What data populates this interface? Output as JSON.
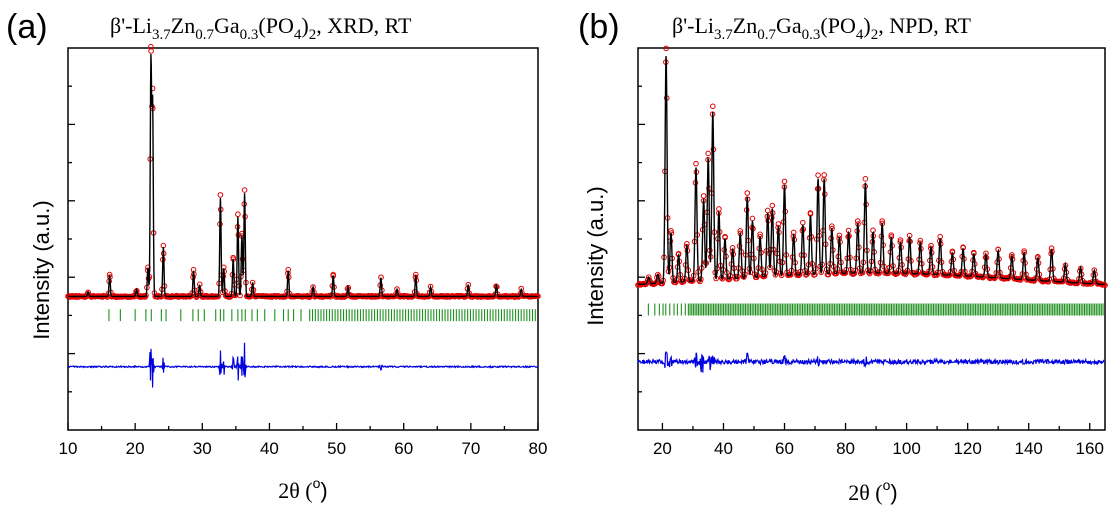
{
  "figure": {
    "panels": [
      {
        "letter": "(a)",
        "title": {
          "prefix": "β'-Li",
          "s1": "3.7",
          "m1": "Zn",
          "s2": "0.7",
          "m2": "Ga",
          "s3": "0.3",
          "m3": "(PO",
          "s4": "4",
          "m4": ")",
          "s5": "2",
          "suffix": ", XRD, RT"
        },
        "ylabel": "Intensity (a.u.)",
        "xlabel_theta": "2θ (",
        "xlabel_sup": "o",
        "xlabel_close": ")"
      },
      {
        "letter": "(b)",
        "title": {
          "prefix": "β'-Li",
          "s1": "3.7",
          "m1": "Zn",
          "s2": "0.7",
          "m2": "Ga",
          "s3": "0.3",
          "m3": "(PO",
          "s4": "4",
          "m4": ")",
          "s5": "2",
          "suffix": ", NPD, RT"
        },
        "ylabel": "Intensity (a.u.)",
        "xlabel_theta": "2θ (",
        "xlabel_sup": "o",
        "xlabel_close": ")"
      }
    ]
  },
  "chart_data": [
    {
      "type": "line",
      "technique": "XRD",
      "xlim": [
        10,
        80
      ],
      "xticks": [
        10,
        20,
        30,
        40,
        50,
        60,
        70,
        80
      ],
      "xtick_labels": [
        "10",
        "20",
        "30",
        "40",
        "50",
        "60",
        "70",
        "80"
      ],
      "ylim": [
        -0.55,
        1.08
      ],
      "yticks_labeled": false,
      "colors": {
        "observed": "#e00000",
        "calculated": "#000000",
        "bragg": "#1f8f1f",
        "difference": "#0000e0"
      },
      "baseline": 0.02,
      "peaks": [
        [
          13.0,
          0.02
        ],
        [
          16.2,
          0.09
        ],
        [
          20.2,
          0.03
        ],
        [
          21.9,
          0.12
        ],
        [
          22.35,
          1.0
        ],
        [
          22.6,
          0.82
        ],
        [
          24.2,
          0.21
        ],
        [
          28.7,
          0.11
        ],
        [
          29.6,
          0.05
        ],
        [
          32.7,
          0.42
        ],
        [
          33.2,
          0.12
        ],
        [
          34.6,
          0.16
        ],
        [
          35.3,
          0.34
        ],
        [
          35.9,
          0.26
        ],
        [
          36.3,
          0.44
        ],
        [
          37.5,
          0.06
        ],
        [
          42.8,
          0.11
        ],
        [
          46.5,
          0.04
        ],
        [
          49.5,
          0.09
        ],
        [
          51.7,
          0.04
        ],
        [
          56.6,
          0.08
        ],
        [
          59.0,
          0.03
        ],
        [
          61.8,
          0.09
        ],
        [
          64.0,
          0.04
        ],
        [
          69.6,
          0.05
        ],
        [
          73.8,
          0.05
        ],
        [
          77.5,
          0.03
        ]
      ],
      "peak_width": 0.14,
      "bragg_ticks": [
        16.1,
        17.8,
        20.0,
        21.6,
        22.4,
        23.9,
        24.6,
        26.8,
        28.6,
        29.4,
        30.3,
        32.0,
        32.7,
        33.2,
        34.4,
        35.3,
        35.9,
        36.4,
        37.4,
        38.2,
        39.3,
        40.8,
        42.1,
        42.8,
        43.6,
        44.7
      ],
      "bragg_dense_from": 46.0,
      "bragg_dense_step": 0.42,
      "bragg_level": -0.06,
      "difference_level": -0.28,
      "difference_spikes": [
        [
          22.3,
          0.1
        ],
        [
          22.6,
          -0.09
        ],
        [
          24.2,
          0.04
        ],
        [
          32.7,
          0.07
        ],
        [
          33.2,
          -0.04
        ],
        [
          34.6,
          0.04
        ],
        [
          35.3,
          -0.07
        ],
        [
          35.9,
          0.06
        ],
        [
          36.3,
          0.1
        ],
        [
          56.6,
          0.02
        ]
      ],
      "series": [
        {
          "name": "observed"
        },
        {
          "name": "calculated"
        },
        {
          "name": "bragg positions"
        },
        {
          "name": "difference"
        }
      ]
    },
    {
      "type": "line",
      "technique": "NPD",
      "xlim": [
        12,
        165
      ],
      "xticks": [
        20,
        40,
        60,
        80,
        100,
        120,
        140,
        160
      ],
      "xtick_labels": [
        "20",
        "40",
        "60",
        "80",
        "100",
        "120",
        "140",
        "160"
      ],
      "ylim": [
        -0.6,
        1.08
      ],
      "yticks_labeled": false,
      "colors": {
        "observed": "#e00000",
        "calculated": "#000000",
        "bragg": "#1f8f1f",
        "difference": "#0000e0"
      },
      "baseline": 0.02,
      "background_hump": 0.07,
      "peaks": [
        [
          15.5,
          0.03
        ],
        [
          18.5,
          0.04
        ],
        [
          21.2,
          1.0
        ],
        [
          22.8,
          0.22
        ],
        [
          25.3,
          0.12
        ],
        [
          28.0,
          0.16
        ],
        [
          31.0,
          0.5
        ],
        [
          33.5,
          0.36
        ],
        [
          35.0,
          0.54
        ],
        [
          36.5,
          0.74
        ],
        [
          38.5,
          0.3
        ],
        [
          40.5,
          0.18
        ],
        [
          43.0,
          0.13
        ],
        [
          45.5,
          0.2
        ],
        [
          47.8,
          0.36
        ],
        [
          49.5,
          0.25
        ],
        [
          52.0,
          0.18
        ],
        [
          54.5,
          0.28
        ],
        [
          56.0,
          0.3
        ],
        [
          58.0,
          0.22
        ],
        [
          60.0,
          0.4
        ],
        [
          63.0,
          0.18
        ],
        [
          66.0,
          0.22
        ],
        [
          68.5,
          0.26
        ],
        [
          71.0,
          0.42
        ],
        [
          73.0,
          0.42
        ],
        [
          75.5,
          0.2
        ],
        [
          78.0,
          0.16
        ],
        [
          81.0,
          0.18
        ],
        [
          84.0,
          0.22
        ],
        [
          86.5,
          0.4
        ],
        [
          89.0,
          0.18
        ],
        [
          92.0,
          0.22
        ],
        [
          95.0,
          0.16
        ],
        [
          98.0,
          0.14
        ],
        [
          101.0,
          0.16
        ],
        [
          104.5,
          0.14
        ],
        [
          108.0,
          0.12
        ],
        [
          111.0,
          0.16
        ],
        [
          115.0,
          0.1
        ],
        [
          118.5,
          0.12
        ],
        [
          122.0,
          0.1
        ],
        [
          126.0,
          0.1
        ],
        [
          130.0,
          0.12
        ],
        [
          134.5,
          0.1
        ],
        [
          138.5,
          0.12
        ],
        [
          143.0,
          0.1
        ],
        [
          147.5,
          0.14
        ],
        [
          152.0,
          0.08
        ],
        [
          157.0,
          0.07
        ],
        [
          161.5,
          0.06
        ]
      ],
      "peak_width": 0.45,
      "bragg_ticks": [
        15.4,
        17.5,
        19.0,
        20.2,
        21.1,
        22.4,
        23.8,
        24.9,
        26.2,
        27.5
      ],
      "bragg_dense_from": 28.5,
      "bragg_dense_step": 0.55,
      "bragg_level": -0.07,
      "difference_level": -0.3,
      "difference_spikes": [
        [
          21.2,
          0.05
        ],
        [
          22.6,
          -0.03
        ],
        [
          31.0,
          0.03
        ],
        [
          33.0,
          -0.05
        ],
        [
          35.5,
          -0.04
        ],
        [
          36.5,
          0.03
        ],
        [
          47.8,
          0.03
        ],
        [
          60.0,
          0.02
        ],
        [
          71.0,
          0.02
        ],
        [
          86.5,
          0.02
        ]
      ],
      "series": [
        {
          "name": "observed"
        },
        {
          "name": "calculated"
        },
        {
          "name": "bragg positions"
        },
        {
          "name": "difference"
        }
      ]
    }
  ]
}
